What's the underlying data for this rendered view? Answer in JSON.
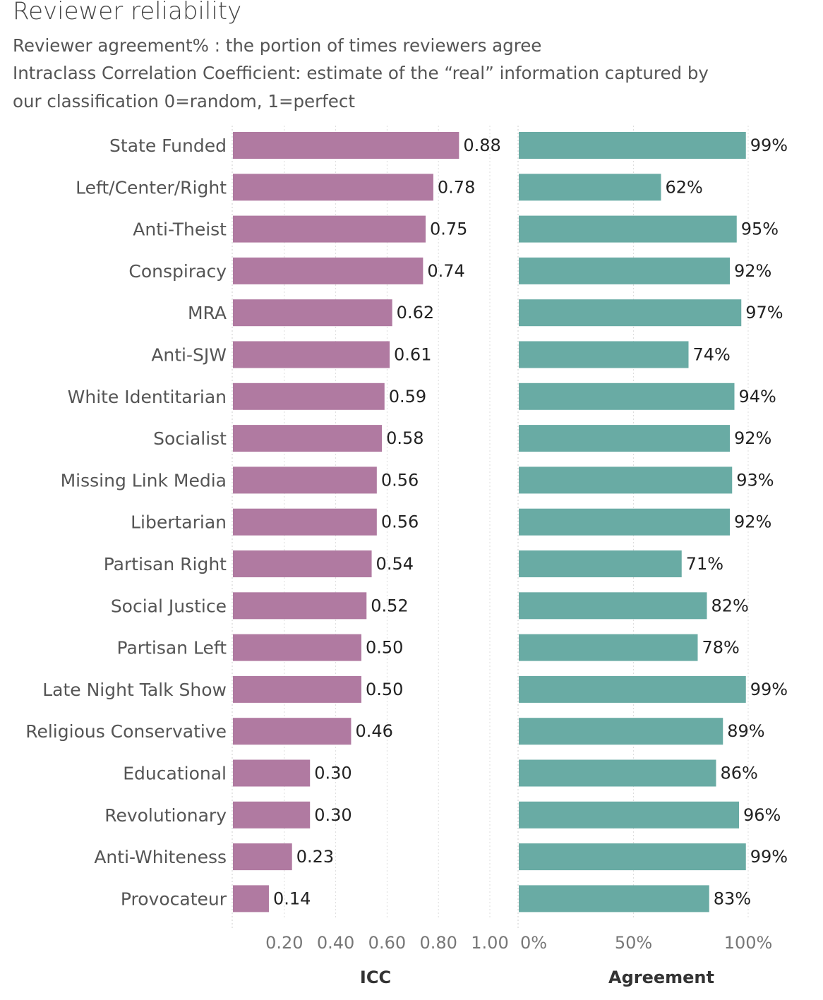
{
  "title": "Reviewer reliability",
  "subtitle_lines": [
    "Reviewer agreement% : the portion of times reviewers agree",
    "Intraclass Correlation Coefficient: estimate of the “real” information captured by",
    "our classification   0=random, 1=perfect"
  ],
  "colors": {
    "icc": "#b07aa1",
    "agreement": "#69aba4",
    "grid": "#dddddd"
  },
  "chart_data": [
    {
      "type": "bar",
      "orientation": "horizontal",
      "name": "ICC",
      "xlabel": "ICC",
      "xlim": [
        0,
        1.0
      ],
      "tick_labels": [
        "0.20",
        "0.40",
        "0.60",
        "0.80",
        "1.00"
      ],
      "tick_values": [
        0.2,
        0.4,
        0.6,
        0.8,
        1.0
      ],
      "categories": [
        "State Funded",
        "Left/Center/Right",
        "Anti-Theist",
        "Conspiracy",
        "MRA",
        "Anti-SJW",
        "White Identitarian",
        "Socialist",
        "Missing Link Media",
        "Libertarian",
        "Partisan Right",
        "Social Justice",
        "Partisan Left",
        "Late Night Talk Show",
        "Religious Conservative",
        "Educational",
        "Revolutionary",
        "Anti-Whiteness",
        "Provocateur"
      ],
      "values": [
        0.88,
        0.78,
        0.75,
        0.74,
        0.62,
        0.61,
        0.59,
        0.58,
        0.56,
        0.56,
        0.54,
        0.52,
        0.5,
        0.5,
        0.46,
        0.3,
        0.3,
        0.23,
        0.14
      ],
      "value_labels": [
        "0.88",
        "0.78",
        "0.75",
        "0.74",
        "0.62",
        "0.61",
        "0.59",
        "0.58",
        "0.56",
        "0.56",
        "0.54",
        "0.52",
        "0.50",
        "0.50",
        "0.46",
        "0.30",
        "0.30",
        "0.23",
        "0.14"
      ]
    },
    {
      "type": "bar",
      "orientation": "horizontal",
      "name": "Agreement",
      "xlabel": "Agreement",
      "xlim": [
        0,
        100
      ],
      "tick_labels": [
        "0%",
        "50%",
        "100%"
      ],
      "tick_values": [
        0,
        50,
        100
      ],
      "categories": [
        "State Funded",
        "Left/Center/Right",
        "Anti-Theist",
        "Conspiracy",
        "MRA",
        "Anti-SJW",
        "White Identitarian",
        "Socialist",
        "Missing Link Media",
        "Libertarian",
        "Partisan Right",
        "Social Justice",
        "Partisan Left",
        "Late Night Talk Show",
        "Religious Conservative",
        "Educational",
        "Revolutionary",
        "Anti-Whiteness",
        "Provocateur"
      ],
      "values": [
        99,
        62,
        95,
        92,
        97,
        74,
        94,
        92,
        93,
        92,
        71,
        82,
        78,
        99,
        89,
        86,
        96,
        99,
        83
      ],
      "value_labels": [
        "99%",
        "62%",
        "95%",
        "92%",
        "97%",
        "74%",
        "94%",
        "92%",
        "93%",
        "92%",
        "71%",
        "82%",
        "78%",
        "99%",
        "89%",
        "86%",
        "96%",
        "99%",
        "83%"
      ]
    }
  ]
}
